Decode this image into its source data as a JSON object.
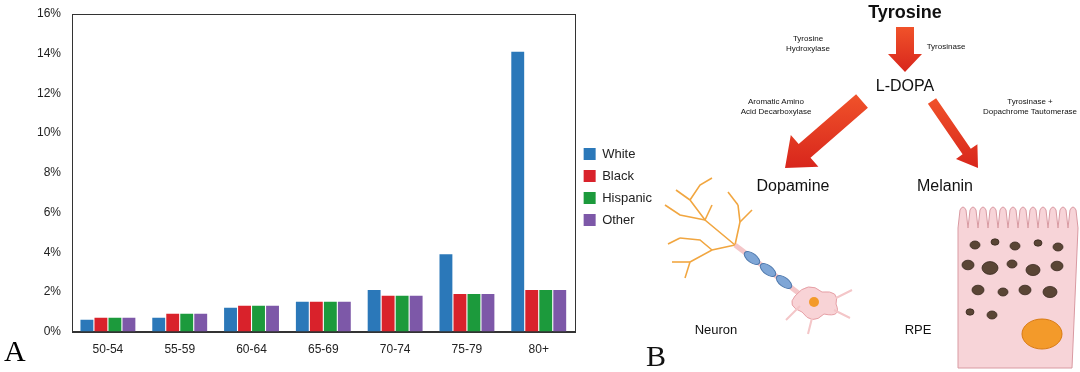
{
  "panel_labels": [
    "A",
    "B"
  ],
  "chart_data": {
    "type": "bar",
    "categories": [
      "50-54",
      "55-59",
      "60-64",
      "65-69",
      "70-74",
      "75-79",
      "80+"
    ],
    "series": [
      {
        "name": "White",
        "color": "#2b78b9",
        "values": [
          0.6,
          0.7,
          1.2,
          1.5,
          2.1,
          3.9,
          14.1
        ]
      },
      {
        "name": "Black",
        "color": "#d9222b",
        "values": [
          0.7,
          0.9,
          1.3,
          1.5,
          1.8,
          1.9,
          2.1
        ]
      },
      {
        "name": "Hispanic",
        "color": "#1c9a3c",
        "values": [
          0.7,
          0.9,
          1.3,
          1.5,
          1.8,
          1.9,
          2.1
        ]
      },
      {
        "name": "Other",
        "color": "#7d58a8",
        "values": [
          0.7,
          0.9,
          1.3,
          1.5,
          1.8,
          1.9,
          2.1
        ]
      }
    ],
    "ylim": [
      0,
      16
    ],
    "yticks": [
      {
        "value": 0,
        "label": "0%"
      },
      {
        "value": 2,
        "label": "2%"
      },
      {
        "value": 4,
        "label": "4%"
      },
      {
        "value": 6,
        "label": "6%"
      },
      {
        "value": 8,
        "label": "8%"
      },
      {
        "value": 10,
        "label": "10%"
      },
      {
        "value": 12,
        "label": "12%"
      },
      {
        "value": 14,
        "label": "14%"
      },
      {
        "value": 16,
        "label": "16%"
      }
    ],
    "grid": false,
    "legend": "right"
  },
  "diagram": {
    "nodes": [
      {
        "label": "Tyrosine"
      },
      {
        "label": "L-DOPA"
      },
      {
        "label": "Dopamine"
      },
      {
        "label": "Melanin"
      }
    ],
    "edges": [
      {
        "from": 0,
        "to": 1,
        "enzymes": [
          [
            "Tyrosine",
            "Hydroxylase"
          ],
          [
            "Tyrosinase"
          ]
        ]
      },
      {
        "from": 1,
        "to": 2,
        "enzymes": [
          [
            "Aromatic Amino",
            "Acid Decarboxylase"
          ]
        ]
      },
      {
        "from": 1,
        "to": 3,
        "enzymes": [
          [
            "Tyrosinase +",
            "Dopachrome Tautomerase"
          ]
        ]
      }
    ],
    "cells": [
      {
        "label": "Neuron"
      },
      {
        "label": "RPE"
      }
    ]
  }
}
